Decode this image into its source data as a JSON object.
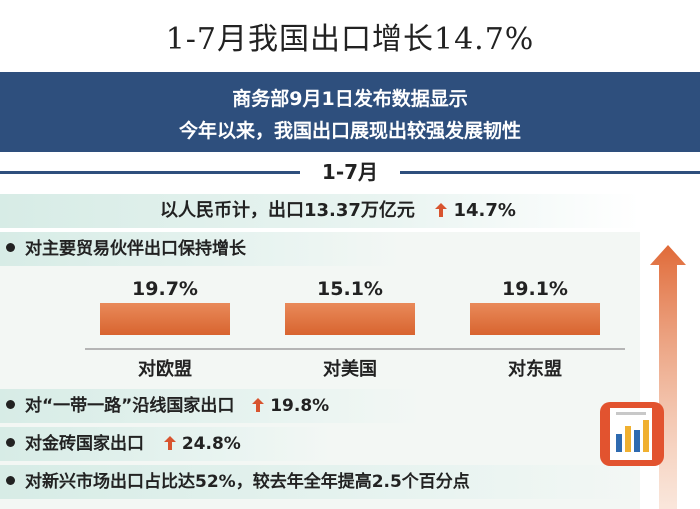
{
  "title": "1-7月我国出口增长14.7%",
  "banner": {
    "line1": "商务部9月1日发布数据显示",
    "line2": "今年以来，我国出口展现出较强发展韧性"
  },
  "period": "1-7月",
  "total": {
    "text": "以人民币计，出口13.37万亿元",
    "arrow": "🡅",
    "growth": "14.7%"
  },
  "section_heading": "对主要贸易伙伴出口保持增长",
  "chart_data": {
    "type": "bar",
    "categories": [
      "对欧盟",
      "对美国",
      "对东盟"
    ],
    "values": [
      19.7,
      15.1,
      19.1
    ],
    "value_labels": [
      "19.7%",
      "15.1%",
      "19.1%"
    ],
    "ylim": [
      0,
      20
    ]
  },
  "bullets": [
    {
      "text": "对“一带一路”沿线国家出口",
      "growth": "19.8%"
    },
    {
      "text": "对金砖国家出口",
      "growth": "24.8%"
    },
    {
      "text": "对新兴市场出口占比达52%，较去年全年提高2.5个百分点",
      "growth": ""
    }
  ],
  "colors": {
    "banner": "#2e4f7d",
    "bar": "#d8642f",
    "band": "#d7ece6",
    "arrow": "#d8542f"
  },
  "icons": {
    "up_arrow": "up-arrow-icon",
    "report": "report-chart-icon",
    "big_arrow": "big-up-arrow"
  }
}
